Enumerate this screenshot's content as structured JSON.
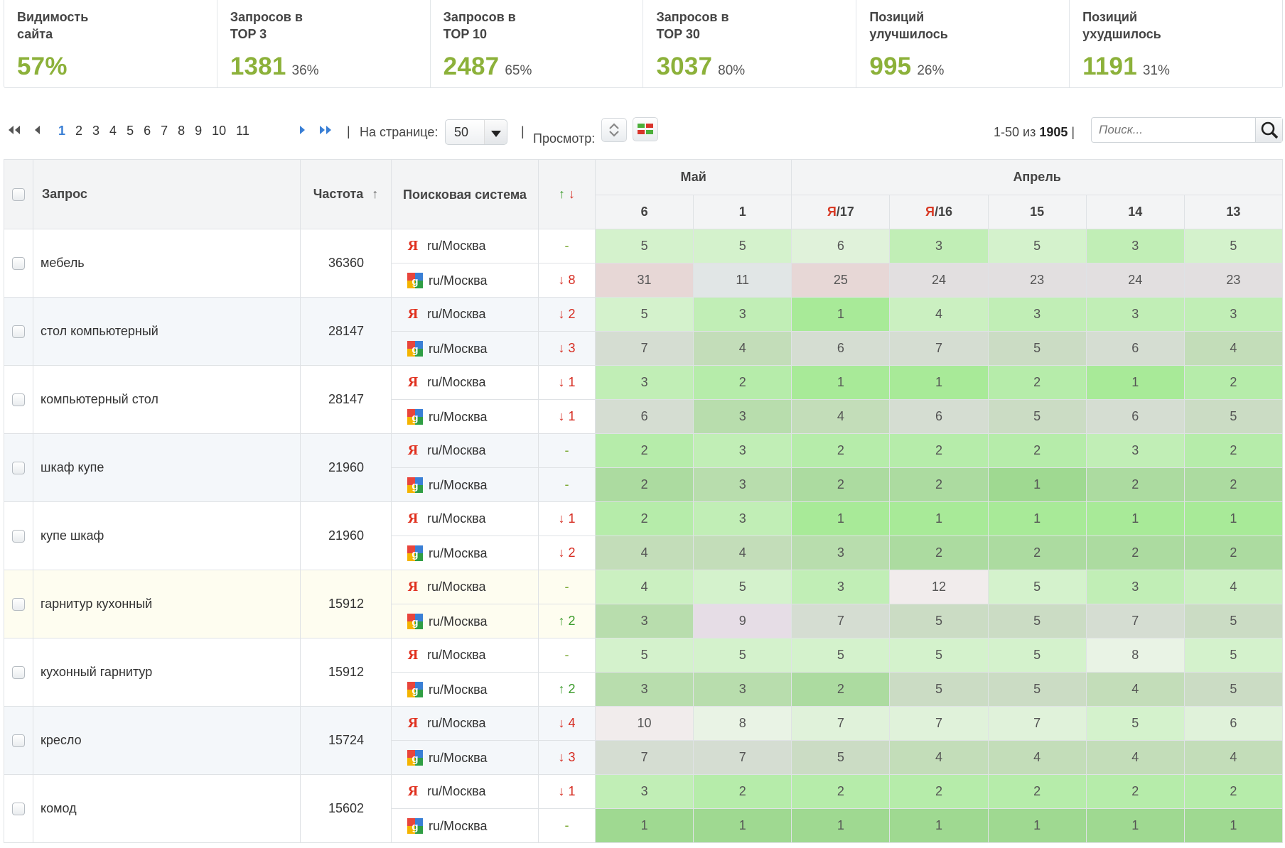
{
  "stats": [
    {
      "label": "Видимость\nсайта",
      "value": "57%",
      "pct": ""
    },
    {
      "label": "Запросов в\nTOP 3",
      "value": "1381",
      "pct": "36%"
    },
    {
      "label": "Запросов в\nTOP 10",
      "value": "2487",
      "pct": "65%"
    },
    {
      "label": "Запросов в\nTOP 30",
      "value": "3037",
      "pct": "80%"
    },
    {
      "label": "Позиций\nулучшилось",
      "value": "995",
      "pct": "26%"
    },
    {
      "label": "Позиций\nухудшилось",
      "value": "1191",
      "pct": "31%"
    }
  ],
  "toolbar": {
    "pages": [
      "1",
      "2",
      "3",
      "4",
      "5",
      "6",
      "7",
      "8",
      "9",
      "10",
      "11"
    ],
    "current_page": "1",
    "per_page_label": "На странице:",
    "per_page_value": "50",
    "view_label": "Просмотр:",
    "range_text": "1-50 из ",
    "range_total": "1905",
    "range_sep": "|",
    "search_placeholder": "Поиск..."
  },
  "table": {
    "headers": {
      "query": "Запрос",
      "freq": "Частота",
      "freq_sort": "↑",
      "engine": "Поисковая система",
      "delta_up": "↑",
      "delta_down": "↓",
      "month1": "Май",
      "month2": "Апрель"
    },
    "dates": [
      {
        "prefix": "",
        "label": "6"
      },
      {
        "prefix": "",
        "label": "1"
      },
      {
        "prefix": "Я",
        "label": "/17"
      },
      {
        "prefix": "Я",
        "label": "/16"
      },
      {
        "prefix": "",
        "label": "15"
      },
      {
        "prefix": "",
        "label": "14"
      },
      {
        "prefix": "",
        "label": "13"
      }
    ],
    "rows": [
      {
        "query": "мебель",
        "freq": "36360",
        "style": "a",
        "yandex": {
          "region": "ru/Москва",
          "delta": "-",
          "dir": "none",
          "vals": [
            5,
            5,
            6,
            3,
            5,
            3,
            5
          ]
        },
        "google": {
          "region": "ru/Москва",
          "delta": "↓ 8",
          "dir": "down",
          "vals": [
            31,
            11,
            25,
            24,
            23,
            24,
            23
          ]
        }
      },
      {
        "query": "стол компьютерный",
        "freq": "28147",
        "style": "b",
        "yandex": {
          "region": "ru/Москва",
          "delta": "↓ 2",
          "dir": "down",
          "vals": [
            5,
            3,
            1,
            4,
            3,
            3,
            3
          ]
        },
        "google": {
          "region": "ru/Москва",
          "delta": "↓ 3",
          "dir": "down",
          "vals": [
            7,
            4,
            6,
            7,
            5,
            6,
            4
          ]
        }
      },
      {
        "query": "компьютерный стол",
        "freq": "28147",
        "style": "a",
        "yandex": {
          "region": "ru/Москва",
          "delta": "↓ 1",
          "dir": "down",
          "vals": [
            3,
            2,
            1,
            1,
            2,
            1,
            2
          ]
        },
        "google": {
          "region": "ru/Москва",
          "delta": "↓ 1",
          "dir": "down",
          "vals": [
            6,
            3,
            4,
            6,
            5,
            6,
            5
          ]
        }
      },
      {
        "query": "шкаф купе",
        "freq": "21960",
        "style": "b",
        "yandex": {
          "region": "ru/Москва",
          "delta": "-",
          "dir": "none",
          "vals": [
            2,
            3,
            2,
            2,
            2,
            3,
            2
          ]
        },
        "google": {
          "region": "ru/Москва",
          "delta": "-",
          "dir": "none",
          "vals": [
            2,
            3,
            2,
            2,
            1,
            2,
            2
          ]
        }
      },
      {
        "query": "купе шкаф",
        "freq": "21960",
        "style": "a",
        "yandex": {
          "region": "ru/Москва",
          "delta": "↓ 1",
          "dir": "down",
          "vals": [
            2,
            3,
            1,
            1,
            1,
            1,
            1
          ]
        },
        "google": {
          "region": "ru/Москва",
          "delta": "↓ 2",
          "dir": "down",
          "vals": [
            4,
            4,
            3,
            2,
            2,
            2,
            2
          ]
        }
      },
      {
        "query": "гарнитур кухонный",
        "freq": "15912",
        "style": "y",
        "yandex": {
          "region": "ru/Москва",
          "delta": "-",
          "dir": "none",
          "vals": [
            4,
            5,
            3,
            12,
            5,
            3,
            4
          ]
        },
        "google": {
          "region": "ru/Москва",
          "delta": "↑ 2",
          "dir": "up",
          "vals": [
            3,
            9,
            7,
            5,
            5,
            7,
            5
          ]
        }
      },
      {
        "query": "кухонный гарнитур",
        "freq": "15912",
        "style": "a",
        "yandex": {
          "region": "ru/Москва",
          "delta": "-",
          "dir": "none",
          "vals": [
            5,
            5,
            5,
            5,
            5,
            8,
            5
          ]
        },
        "google": {
          "region": "ru/Москва",
          "delta": "↑ 2",
          "dir": "up",
          "vals": [
            3,
            3,
            2,
            5,
            5,
            4,
            5
          ]
        }
      },
      {
        "query": "кресло",
        "freq": "15724",
        "style": "b",
        "yandex": {
          "region": "ru/Москва",
          "delta": "↓ 4",
          "dir": "down",
          "vals": [
            10,
            8,
            7,
            7,
            7,
            5,
            6
          ]
        },
        "google": {
          "region": "ru/Москва",
          "delta": "↓ 3",
          "dir": "down",
          "vals": [
            7,
            7,
            5,
            4,
            4,
            4,
            4
          ]
        }
      },
      {
        "query": "комод",
        "freq": "15602",
        "style": "a",
        "yandex": {
          "region": "ru/Москва",
          "delta": "↓ 1",
          "dir": "down",
          "vals": [
            3,
            2,
            2,
            2,
            2,
            2,
            2
          ]
        },
        "google": {
          "region": "ru/Москва",
          "delta": "-",
          "dir": "none",
          "vals": [
            1,
            1,
            1,
            1,
            1,
            1,
            1
          ]
        }
      }
    ]
  },
  "colors": {
    "accent_green": "#8cb13a",
    "link_blue": "#3a7fd5",
    "up": "#3a9b2a",
    "down": "#d62b20"
  },
  "icons": {
    "yandex": "yandex-icon",
    "google": "google-icon"
  }
}
